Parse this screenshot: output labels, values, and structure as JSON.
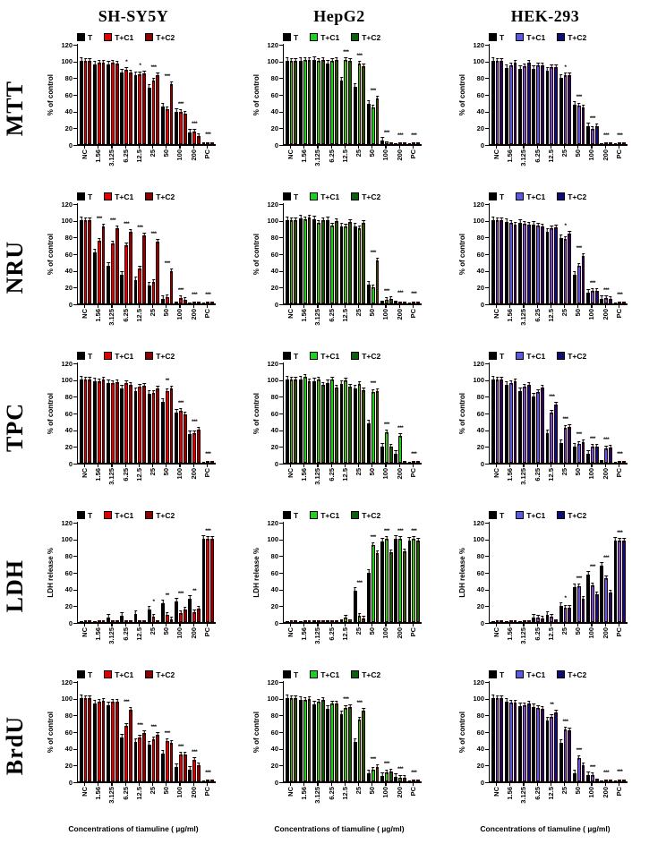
{
  "figure": {
    "columns": [
      "SH-SY5Y",
      "HepG2",
      "HEK-293"
    ],
    "rows": [
      "MTT",
      "NRU",
      "TPC",
      "LDH",
      "BrdU"
    ],
    "x_axis_title": "Concentrations of tiamuline ( µg/ml)",
    "legend": [
      "T",
      "T+C1",
      "T+C2"
    ],
    "colors": {
      "T": "#000000",
      "SH-SY5Y": {
        "T+C1": "#e00000",
        "T+C2": "#8b0000"
      },
      "HepG2": {
        "T+C1": "#1fd11f",
        "T+C2": "#0d5f0d"
      },
      "HEK-293": {
        "T+C1": "#5a5ae0",
        "T+C2": "#0d0d7a"
      }
    }
  },
  "categories": [
    "NC",
    "1.56",
    "3.125",
    "6.25",
    "12.5",
    "25",
    "50",
    "100",
    "200",
    "PC"
  ],
  "chart_data": [
    {
      "type": "bar",
      "assay": "MTT",
      "cell_line": "SH-SY5Y",
      "ylabel": "% of control",
      "ylim": [
        0,
        120
      ],
      "series": [
        {
          "name": "T",
          "values": [
            100,
            95,
            95,
            86,
            82,
            67,
            45,
            39,
            14,
            2
          ]
        },
        {
          "name": "T+C1",
          "values": [
            100,
            97,
            97,
            89,
            84,
            76,
            42,
            39,
            15,
            2
          ]
        },
        {
          "name": "T+C2",
          "values": [
            100,
            98,
            96,
            86,
            85,
            82,
            72,
            36,
            10,
            2
          ]
        }
      ],
      "sig": [
        "",
        "",
        "",
        "*",
        "*",
        "***",
        "***",
        "***",
        "***",
        "***"
      ]
    },
    {
      "type": "bar",
      "assay": "MTT",
      "cell_line": "HepG2",
      "ylabel": "% of control",
      "ylim": [
        0,
        120
      ],
      "series": [
        {
          "name": "T",
          "values": [
            100,
            100,
            101,
            96,
            76,
            69,
            48,
            4,
            1,
            1
          ]
        },
        {
          "name": "T+C1",
          "values": [
            100,
            101,
            100,
            100,
            101,
            96,
            44,
            3,
            1,
            1
          ]
        },
        {
          "name": "T+C2",
          "values": [
            100,
            101,
            101,
            101,
            100,
            93,
            55,
            2,
            1,
            1
          ]
        }
      ],
      "sig": [
        "",
        "",
        "",
        "",
        "***",
        "***",
        "***",
        "***",
        "***",
        "***"
      ]
    },
    {
      "type": "bar",
      "assay": "MTT",
      "cell_line": "HEK-293",
      "ylabel": "% of control",
      "ylim": [
        0,
        120
      ],
      "series": [
        {
          "name": "T",
          "values": [
            100,
            91,
            90,
            90,
            88,
            79,
            47,
            21,
            1,
            1
          ]
        },
        {
          "name": "T+C1",
          "values": [
            100,
            94,
            93,
            94,
            92,
            83,
            46,
            18,
            1,
            1
          ]
        },
        {
          "name": "T+C2",
          "values": [
            100,
            97,
            97,
            94,
            92,
            83,
            44,
            21,
            1,
            1
          ]
        }
      ],
      "sig": [
        "",
        "",
        "",
        "",
        "",
        "*",
        "***",
        "***",
        "***",
        "***"
      ]
    },
    {
      "type": "bar",
      "assay": "NRU",
      "cell_line": "SH-SY5Y",
      "ylabel": "% of control",
      "ylim": [
        0,
        120
      ],
      "series": [
        {
          "name": "T",
          "values": [
            100,
            61,
            45,
            34,
            28,
            21,
            5,
            2,
            1,
            1
          ]
        },
        {
          "name": "T+C1",
          "values": [
            100,
            75,
            72,
            70,
            42,
            26,
            8,
            6,
            1,
            1
          ]
        },
        {
          "name": "T+C2",
          "values": [
            100,
            92,
            90,
            86,
            81,
            74,
            39,
            4,
            1,
            1
          ]
        }
      ],
      "sig": [
        "",
        "***",
        "***",
        "***",
        "***",
        "***",
        "***",
        "***",
        "***",
        "***"
      ]
    },
    {
      "type": "bar",
      "assay": "NRU",
      "cell_line": "HepG2",
      "ylabel": "% of control",
      "ylim": [
        0,
        120
      ],
      "series": [
        {
          "name": "T",
          "values": [
            100,
            102,
            101,
            100,
            92,
            92,
            23,
            3,
            3,
            1
          ]
        },
        {
          "name": "T+C1",
          "values": [
            100,
            101,
            96,
            93,
            92,
            90,
            19,
            4,
            2,
            1
          ]
        },
        {
          "name": "T+C2",
          "values": [
            100,
            103,
            100,
            99,
            97,
            96,
            51,
            5,
            2,
            2
          ]
        }
      ],
      "sig": [
        "",
        "",
        "",
        "",
        "",
        "",
        "***",
        "***",
        "***",
        "***"
      ]
    },
    {
      "type": "bar",
      "assay": "NRU",
      "cell_line": "HEK-293",
      "ylabel": "% of control",
      "ylim": [
        0,
        120
      ],
      "series": [
        {
          "name": "T",
          "values": [
            100,
            98,
            96,
            94,
            86,
            78,
            34,
            13,
            5,
            1
          ]
        },
        {
          "name": "T+C1",
          "values": [
            100,
            96,
            95,
            93,
            90,
            77,
            45,
            15,
            6,
            1
          ]
        },
        {
          "name": "T+C2",
          "values": [
            100,
            94,
            94,
            92,
            91,
            84,
            57,
            15,
            5,
            1
          ]
        }
      ],
      "sig": [
        "",
        "",
        "",
        "",
        "",
        "*",
        "***",
        "***",
        "***",
        "***"
      ]
    },
    {
      "type": "bar",
      "assay": "TPC",
      "cell_line": "SH-SY5Y",
      "ylabel": "% of control",
      "ylim": [
        0,
        120
      ],
      "series": [
        {
          "name": "T",
          "values": [
            100,
            97,
            95,
            89,
            86,
            82,
            73,
            60,
            34,
            1
          ]
        },
        {
          "name": "T+C1",
          "values": [
            100,
            98,
            95,
            95,
            91,
            84,
            86,
            62,
            35,
            1
          ]
        },
        {
          "name": "T+C2",
          "values": [
            100,
            100,
            96,
            93,
            92,
            89,
            89,
            58,
            40,
            1
          ]
        }
      ],
      "sig": [
        "",
        "",
        "",
        "",
        "",
        "",
        "**",
        "***",
        "***",
        "***"
      ]
    },
    {
      "type": "bar",
      "assay": "TPC",
      "cell_line": "HepG2",
      "ylabel": "% of control",
      "ylim": [
        0,
        120
      ],
      "series": [
        {
          "name": "T",
          "values": [
            100,
            100,
            97,
            95,
            94,
            89,
            47,
            19,
            11,
            1
          ]
        },
        {
          "name": "T+C1",
          "values": [
            100,
            103,
            100,
            100,
            99,
            94,
            85,
            36,
            32,
            1
          ]
        },
        {
          "name": "T+C2",
          "values": [
            100,
            97,
            93,
            90,
            91,
            87,
            86,
            19,
            1,
            1
          ]
        }
      ],
      "sig": [
        "",
        "",
        "",
        "",
        "",
        "",
        "***",
        "***",
        "***",
        "***"
      ]
    },
    {
      "type": "bar",
      "assay": "TPC",
      "cell_line": "HEK-293",
      "ylabel": "% of control",
      "ylim": [
        0,
        120
      ],
      "series": [
        {
          "name": "T",
          "values": [
            100,
            93,
            86,
            79,
            35,
            24,
            19,
            11,
            3,
            1
          ]
        },
        {
          "name": "T+C1",
          "values": [
            100,
            95,
            91,
            85,
            60,
            42,
            22,
            19,
            17,
            1
          ]
        },
        {
          "name": "T+C2",
          "values": [
            100,
            97,
            93,
            90,
            70,
            43,
            25,
            19,
            18,
            1
          ]
        }
      ],
      "sig": [
        "",
        "",
        "",
        "",
        "***",
        "***",
        "***",
        "***",
        "***",
        "***"
      ]
    },
    {
      "type": "bar",
      "assay": "LDH",
      "cell_line": "SH-SY5Y",
      "ylabel": "LDH release %",
      "ylim": [
        0,
        120
      ],
      "series": [
        {
          "name": "T",
          "values": [
            0.5,
            1.5,
            5,
            7,
            10,
            15,
            22,
            25,
            28,
            100
          ]
        },
        {
          "name": "T+C1",
          "values": [
            0.3,
            0.3,
            0.5,
            0.5,
            1,
            6.5,
            9,
            11,
            12,
            100
          ]
        },
        {
          "name": "T+C2",
          "values": [
            0.3,
            0.3,
            0.5,
            0.5,
            1,
            1.5,
            3.5,
            15,
            16,
            100
          ]
        }
      ],
      "sig": [
        "",
        "",
        "",
        "",
        "",
        "*",
        "**",
        "***",
        "**",
        "***"
      ]
    },
    {
      "type": "bar",
      "assay": "LDH",
      "cell_line": "HepG2",
      "ylabel": "LDH release %",
      "ylim": [
        0,
        120
      ],
      "series": [
        {
          "name": "T",
          "values": [
            0.5,
            1,
            2,
            2.5,
            3,
            38,
            59,
            96,
            100,
            97
          ]
        },
        {
          "name": "T+C1",
          "values": [
            0.5,
            1,
            2,
            2,
            5,
            7,
            92,
            100,
            100,
            100
          ]
        },
        {
          "name": "T+C2",
          "values": [
            0.5,
            1,
            1,
            2,
            3,
            4,
            83,
            84,
            85,
            97
          ]
        }
      ],
      "sig": [
        "",
        "",
        "",
        "",
        "",
        "***",
        "***",
        "***",
        "***",
        "***"
      ]
    },
    {
      "type": "bar",
      "assay": "LDH",
      "cell_line": "HEK-293",
      "ylabel": "LDH release %",
      "ylim": [
        0,
        120
      ],
      "series": [
        {
          "name": "T",
          "values": [
            0.5,
            1.5,
            1.5,
            5,
            9,
            19,
            42,
            57,
            67,
            98
          ]
        },
        {
          "name": "T+C1",
          "values": [
            0.5,
            1,
            1.5,
            5,
            6,
            17,
            43,
            44,
            53,
            98
          ]
        },
        {
          "name": "T+C2",
          "values": [
            0.5,
            1,
            1.5,
            4,
            3,
            17,
            28,
            33,
            35,
            97
          ]
        }
      ],
      "sig": [
        "",
        "",
        "",
        "",
        "",
        "*",
        "***",
        "***",
        "***",
        "***"
      ]
    },
    {
      "type": "bar",
      "assay": "BrdU",
      "cell_line": "SH-SY5Y",
      "ylabel": "% of control",
      "ylim": [
        0,
        120
      ],
      "series": [
        {
          "name": "T",
          "values": [
            100,
            93,
            91,
            53,
            47,
            44,
            33,
            17,
            14,
            1
          ]
        },
        {
          "name": "T+C1",
          "values": [
            100,
            95,
            95,
            66,
            53,
            50,
            48,
            32,
            26,
            1
          ]
        },
        {
          "name": "T+C2",
          "values": [
            100,
            96,
            95,
            86,
            58,
            56,
            46,
            32,
            19,
            1
          ]
        }
      ],
      "sig": [
        "",
        "",
        "",
        "***",
        "***",
        "***",
        "***",
        "***",
        "***",
        "***"
      ]
    },
    {
      "type": "bar",
      "assay": "BrdU",
      "cell_line": "HepG2",
      "ylabel": "% of control",
      "ylim": [
        0,
        120
      ],
      "series": [
        {
          "name": "T",
          "values": [
            100,
            98,
            92,
            87,
            80,
            47,
            10,
            6,
            5,
            1
          ]
        },
        {
          "name": "T+C1",
          "values": [
            100,
            97,
            95,
            93,
            88,
            74,
            14,
            11,
            4,
            1
          ]
        },
        {
          "name": "T+C2",
          "values": [
            100,
            99,
            97,
            93,
            89,
            85,
            17,
            12,
            4,
            1
          ]
        }
      ],
      "sig": [
        "",
        "",
        "",
        "",
        "***",
        "***",
        "***",
        "***",
        "***",
        "***"
      ]
    },
    {
      "type": "bar",
      "assay": "BrdU",
      "cell_line": "HEK-293",
      "ylabel": "% of control",
      "ylim": [
        0,
        120
      ],
      "series": [
        {
          "name": "T",
          "values": [
            100,
            95,
            90,
            89,
            73,
            46,
            10,
            7,
            1,
            1
          ]
        },
        {
          "name": "T+C1",
          "values": [
            100,
            94,
            91,
            88,
            77,
            62,
            28,
            8,
            1,
            1
          ]
        },
        {
          "name": "T+C2",
          "values": [
            100,
            94,
            93,
            87,
            83,
            61,
            19,
            3,
            1,
            2
          ]
        }
      ],
      "sig": [
        "",
        "",
        "",
        "",
        "**",
        "***",
        "***",
        "***",
        "***",
        "***"
      ]
    }
  ]
}
